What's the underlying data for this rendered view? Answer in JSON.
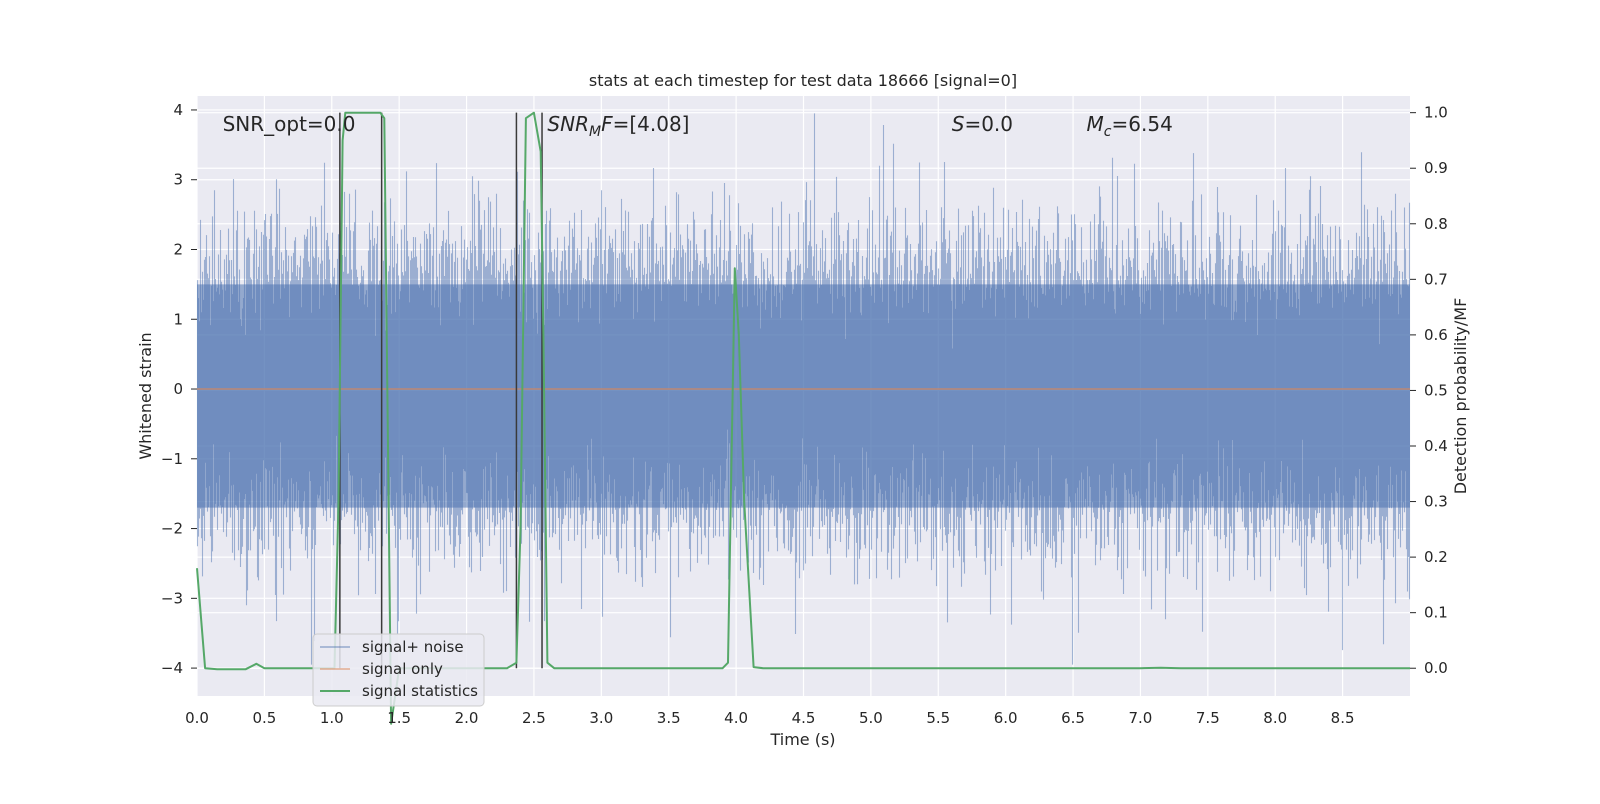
{
  "chart_data": {
    "type": "line",
    "title": "stats at each timestep for test data 18666 [signal=0]",
    "xlabel": "Time (s)",
    "ylabel": "Whitened strain",
    "ylabel_right": "Detection probability/MF",
    "xlim": [
      0.0,
      9.0
    ],
    "ylim": [
      -4.4,
      4.2
    ],
    "ylim_right": [
      -0.05,
      1.03
    ],
    "x_ticks": [
      0.0,
      0.5,
      1.0,
      1.5,
      2.0,
      2.5,
      3.0,
      3.5,
      4.0,
      4.5,
      5.0,
      5.5,
      6.0,
      6.5,
      7.0,
      7.5,
      8.0,
      8.5
    ],
    "x_tick_labels": [
      "0.0",
      "0.5",
      "1.0",
      "1.5",
      "2.0",
      "2.5",
      "3.0",
      "3.5",
      "4.0",
      "4.5",
      "5.0",
      "5.5",
      "6.0",
      "6.5",
      "7.0",
      "7.5",
      "8.0",
      "8.5"
    ],
    "y_ticks": [
      -4,
      -3,
      -2,
      -1,
      0,
      1,
      2,
      3,
      4
    ],
    "y_tick_labels": [
      "−4",
      "−3",
      "−2",
      "−1",
      "0",
      "1",
      "2",
      "3",
      "4"
    ],
    "y_right_ticks": [
      0.0,
      0.1,
      0.2,
      0.3,
      0.4,
      0.5,
      0.6,
      0.7,
      0.8,
      0.9,
      1.0
    ],
    "y_right_tick_labels": [
      "0.0",
      "0.1",
      "0.2",
      "0.3",
      "0.4",
      "0.5",
      "0.6",
      "0.7",
      "0.8",
      "0.9",
      "1.0"
    ],
    "grid": true,
    "legend_position": "lower-left",
    "annotations": [
      {
        "segments": [
          {
            "text": "SNR_opt=0.0",
            "italic": false
          }
        ],
        "x": 0.19,
        "y": 3.8
      },
      {
        "segments": [
          {
            "text": "SNR",
            "italic": true
          },
          {
            "text": "M",
            "italic": true,
            "sub": true
          },
          {
            "text": "F",
            "italic": true
          },
          {
            "text": "=[4.08]",
            "italic": false
          }
        ],
        "x": 2.6,
        "y": 3.8
      },
      {
        "segments": [
          {
            "text": "S",
            "italic": true
          },
          {
            "text": "=0.0",
            "italic": false
          }
        ],
        "x": 5.6,
        "y": 3.8
      },
      {
        "segments": [
          {
            "text": "M",
            "italic": true
          },
          {
            "text": "c",
            "italic": true,
            "sub": true
          },
          {
            "text": "=6.54",
            "italic": false
          }
        ],
        "x": 6.6,
        "y": 3.8
      }
    ],
    "vertical_lines": [
      {
        "x": 1.06,
        "y0": 0.0,
        "y1": 1.0
      },
      {
        "x": 1.37,
        "y0": 0.0,
        "y1": 1.0
      },
      {
        "x": 2.37,
        "y0": 0.0,
        "y1": 1.0
      },
      {
        "x": 2.56,
        "y0": 0.0,
        "y1": 1.0
      }
    ],
    "series": [
      {
        "name": "signal+ noise",
        "color": "#4c72b0",
        "kind": "noise",
        "sample_rate": 2048,
        "band_low": -1.7,
        "band_high": 1.5,
        "axis": "left"
      },
      {
        "name": "signal only",
        "color": "#dd8452",
        "axis": "left",
        "x": [
          0.0,
          9.0
        ],
        "y": [
          0.0,
          0.0
        ]
      },
      {
        "name": "signal statistics",
        "color": "#55a868",
        "axis": "right",
        "x": [
          0.0,
          0.06,
          0.15,
          0.25,
          0.36,
          0.44,
          0.5,
          0.6,
          1.0,
          1.02,
          1.05,
          1.08,
          1.1,
          1.36,
          1.39,
          1.44,
          1.5,
          2.0,
          2.3,
          2.37,
          2.4,
          2.44,
          2.5,
          2.55,
          2.57,
          2.6,
          2.65,
          2.8,
          3.8,
          3.9,
          3.94,
          3.99,
          4.02,
          4.06,
          4.13,
          4.2,
          5.0,
          6.0,
          7.0,
          7.15,
          7.3,
          8.0,
          9.0
        ],
        "y": [
          0.18,
          0.0,
          -0.002,
          -0.002,
          -0.002,
          0.008,
          0.0,
          0.0,
          0.0,
          0.0,
          0.3,
          0.95,
          1.0,
          1.0,
          0.99,
          -0.1,
          0.0,
          0.0,
          0.0,
          0.01,
          0.25,
          0.99,
          1.0,
          0.93,
          0.6,
          0.01,
          0.0,
          0.0,
          0.0,
          0.0,
          0.01,
          0.72,
          0.6,
          0.3,
          0.002,
          0.0,
          0.0,
          0.0,
          0.0,
          0.001,
          0.0,
          0.0,
          0.0
        ]
      }
    ]
  }
}
